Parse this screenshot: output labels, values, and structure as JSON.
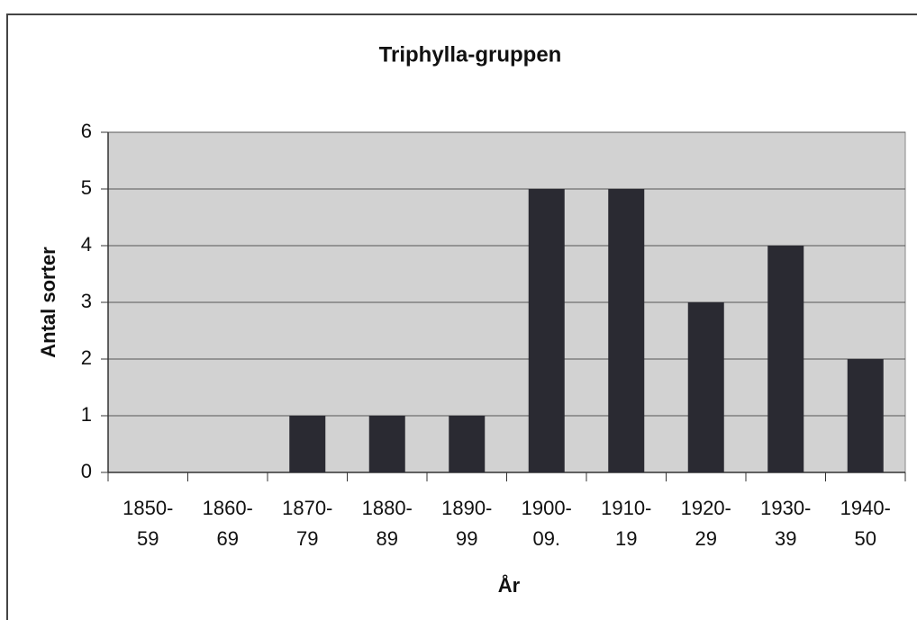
{
  "chart_data": {
    "type": "bar",
    "title": "Triphylla-gruppen",
    "x_label": "År",
    "y_label": "Antal sorter",
    "categories": [
      "1850-\n59",
      "1860-\n69",
      "1870-\n79",
      "1880-\n89",
      "1890-\n99",
      "1900-\n09.",
      "1910-\n19",
      "1920-\n29",
      "1930-\n39",
      "1940-\n50"
    ],
    "values": [
      0,
      0,
      1,
      1,
      1,
      5,
      5,
      3,
      4,
      2
    ],
    "color": "#2a2a32",
    "ylim": [
      0,
      6
    ],
    "yticks": [
      0,
      1,
      2,
      3,
      4,
      5,
      6
    ],
    "grid": true
  }
}
